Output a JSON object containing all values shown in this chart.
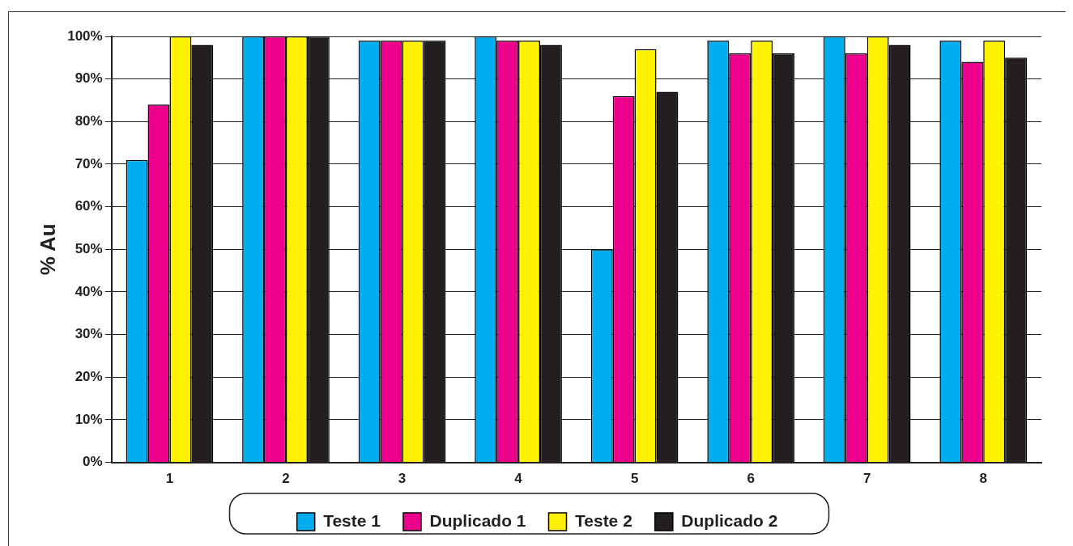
{
  "chart_data": {
    "type": "bar",
    "ylabel": "% Au",
    "categories": [
      "1",
      "2",
      "3",
      "4",
      "5",
      "6",
      "7",
      "8"
    ],
    "series": [
      {
        "name": "Teste 1",
        "color": "#00aeef",
        "values": [
          71,
          100,
          99,
          100,
          50,
          99,
          100,
          99
        ]
      },
      {
        "name": "Duplicado 1",
        "color": "#ec008c",
        "values": [
          84,
          100,
          99,
          99,
          86,
          96,
          96,
          94
        ]
      },
      {
        "name": "Teste 2",
        "color": "#fff200",
        "values": [
          100,
          100,
          99,
          99,
          97,
          99,
          100,
          99
        ]
      },
      {
        "name": "Duplicado 2",
        "color": "#231f20",
        "values": [
          98,
          100,
          99,
          98,
          87,
          96,
          98,
          95
        ]
      }
    ],
    "ylim": [
      0,
      100
    ],
    "yticks": [
      {
        "value": 0,
        "label": "0%"
      },
      {
        "value": 10,
        "label": "10%"
      },
      {
        "value": 20,
        "label": "20%"
      },
      {
        "value": 30,
        "label": "30%"
      },
      {
        "value": 40,
        "label": "40%"
      },
      {
        "value": 50,
        "label": "50%"
      },
      {
        "value": 60,
        "label": "60%"
      },
      {
        "value": 70,
        "label": "70%"
      },
      {
        "value": 80,
        "label": "80%"
      },
      {
        "value": 90,
        "label": "90%"
      },
      {
        "value": 100,
        "label": "100%"
      }
    ],
    "grid": "y",
    "legend": "bottom"
  }
}
